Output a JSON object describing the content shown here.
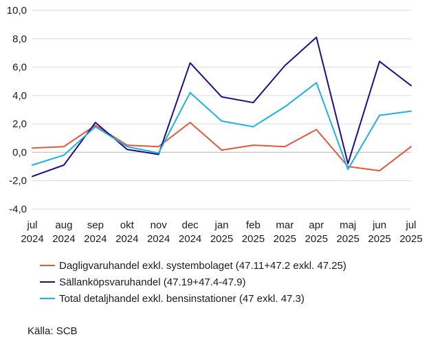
{
  "chart_data": {
    "type": "line",
    "title": "",
    "xlabel": "",
    "ylabel": "",
    "categories": [
      "jul 2024",
      "aug 2024",
      "sep 2024",
      "okt 2024",
      "nov 2024",
      "dec 2024",
      "jan 2025",
      "feb 2025",
      "mar 2025",
      "apr 2025",
      "maj 2025",
      "jun 2025",
      "jul 2025"
    ],
    "category_labels": [
      [
        "jul",
        "2024"
      ],
      [
        "aug",
        "2024"
      ],
      [
        "sep",
        "2024"
      ],
      [
        "okt",
        "2024"
      ],
      [
        "nov",
        "2024"
      ],
      [
        "dec",
        "2024"
      ],
      [
        "jan",
        "2025"
      ],
      [
        "feb",
        "2025"
      ],
      [
        "mar",
        "2025"
      ],
      [
        "apr",
        "2025"
      ],
      [
        "maj",
        "2025"
      ],
      [
        "jun",
        "2025"
      ],
      [
        "jul",
        "2025"
      ]
    ],
    "ylim": [
      -4,
      10
    ],
    "yticks": [
      "10,0",
      "8,0",
      "6,0",
      "4,0",
      "2,0",
      "0,0",
      "-2,0",
      "-4,0"
    ],
    "ytick_values": [
      10,
      8,
      6,
      4,
      2,
      0,
      -2,
      -4
    ],
    "grid": true,
    "legend_position": "bottom",
    "series": [
      {
        "name": "Dagligvaruhandel exkl. systembolaget (47.11+47.2 exkl. 47.25)",
        "color": "#e8553b",
        "values": [
          0.3,
          0.4,
          1.9,
          0.5,
          0.4,
          2.1,
          0.15,
          0.5,
          0.4,
          1.6,
          -1.0,
          -1.3,
          0.4
        ]
      },
      {
        "name": "Sällanköpsvaruhandel (47.19+47.4-47.9)",
        "color": "#1e0c8f",
        "values": [
          -1.7,
          -0.9,
          2.1,
          0.2,
          -0.15,
          6.3,
          3.9,
          3.5,
          6.1,
          8.1,
          -0.8,
          6.4,
          4.7
        ]
      },
      {
        "name": "Total detaljhandel exkl. bensinstationer (47 exkl. 47.3)",
        "color": "#1ab2e6",
        "values": [
          -0.9,
          -0.2,
          1.8,
          0.4,
          -0.05,
          4.2,
          2.2,
          1.8,
          3.2,
          4.9,
          -1.2,
          2.6,
          2.9
        ]
      }
    ]
  },
  "source": "Källa: SCB"
}
